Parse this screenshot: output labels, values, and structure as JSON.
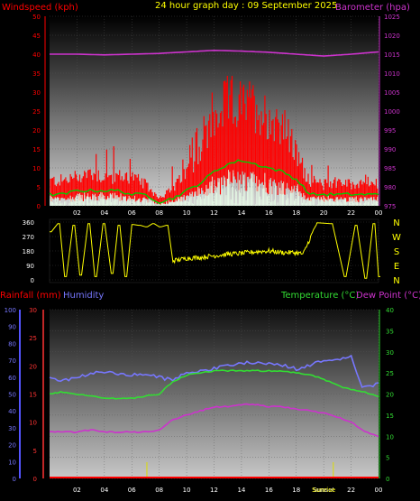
{
  "header": {
    "left_label": "Windspeed (kph)",
    "title": "24 hour graph day : 09 September 2025",
    "right_label": "Barometer (hpa)"
  },
  "colors": {
    "windspeed": "#ff0000",
    "wind_avg": "#00cc00",
    "wind_calm": "#e8ffe8",
    "barometer": "#cc33cc",
    "direction": "#ffff00",
    "rainfall": "#ff0000",
    "humidity": "#7777ff",
    "temperature": "#33dd33",
    "dew_point": "#cc33cc",
    "rain_ticks": "#dddd00",
    "title": "#ffff00"
  },
  "chart_data": [
    {
      "id": "wind_baro",
      "type": "line",
      "x_ticks": [
        "02",
        "04",
        "06",
        "08",
        "10",
        "12",
        "14",
        "16",
        "18",
        "20",
        "22",
        "00"
      ],
      "ylabel": "Windspeed (kph)",
      "ylim": [
        0,
        50
      ],
      "y_ticks": [
        0,
        5,
        10,
        15,
        20,
        25,
        30,
        35,
        40,
        45,
        50
      ],
      "y2label": "Barometer (hpa)",
      "y2lim": [
        975,
        1025
      ],
      "y2_ticks": [
        975,
        980,
        985,
        990,
        995,
        1000,
        1005,
        1010,
        1015,
        1020,
        1025
      ],
      "series": [
        {
          "name": "Windspeed (kph)",
          "x": [
            0,
            1,
            2,
            3,
            4,
            5,
            6,
            7,
            8,
            9,
            10,
            11,
            12,
            13,
            14,
            15,
            16,
            17,
            18,
            19,
            20,
            21,
            22,
            23,
            24
          ],
          "values": [
            6,
            6,
            7,
            8,
            7,
            7,
            7,
            5,
            2,
            4,
            8,
            14,
            20,
            25,
            24,
            24,
            21,
            20,
            12,
            6,
            5,
            6,
            5,
            6,
            5
          ]
        },
        {
          "name": "Average windspeed",
          "x": [
            0,
            1,
            2,
            3,
            4,
            5,
            6,
            7,
            8,
            9,
            10,
            11,
            12,
            13,
            14,
            15,
            16,
            17,
            18,
            19,
            20,
            21,
            22,
            23,
            24
          ],
          "values": [
            3,
            3,
            4,
            4,
            4,
            4,
            3,
            3,
            1,
            2,
            4,
            6,
            9,
            11,
            12,
            11,
            10,
            9,
            7,
            3,
            3,
            3,
            3,
            3,
            3
          ]
        },
        {
          "name": "Barometer (hpa)",
          "x": [
            0,
            2,
            4,
            6,
            8,
            10,
            12,
            14,
            16,
            18,
            20,
            22,
            24
          ],
          "values": [
            1015,
            1015,
            1014.8,
            1015,
            1015.2,
            1015.6,
            1016,
            1015.8,
            1015.5,
            1015,
            1014.5,
            1015,
            1015.6
          ]
        }
      ]
    },
    {
      "id": "direction",
      "type": "line",
      "x_ticks": [
        "02",
        "04",
        "06",
        "08",
        "10",
        "12",
        "14",
        "16",
        "18",
        "20",
        "22",
        "00"
      ],
      "ylim": [
        0,
        360
      ],
      "y_ticks": [
        0,
        90,
        180,
        270,
        360
      ],
      "compass": [
        "N",
        "W",
        "S",
        "E",
        "N"
      ],
      "series": [
        {
          "name": "Wind direction",
          "x": [
            0,
            0.6,
            1.1,
            1.7,
            2.2,
            2.8,
            3.3,
            3.9,
            4.5,
            5.0,
            5.5,
            6.0,
            6.5,
            7.0,
            7.5,
            8.0,
            8.5,
            9.0,
            9.5,
            10.0,
            11,
            12,
            13,
            14,
            15,
            16,
            17,
            18,
            18.5,
            19.5,
            20.5,
            21.5,
            22.3,
            23.0,
            23.6,
            24
          ],
          "values": [
            300,
            350,
            20,
            340,
            30,
            350,
            20,
            350,
            40,
            340,
            20,
            345,
            340,
            330,
            350,
            330,
            340,
            120,
            125,
            135,
            140,
            150,
            160,
            165,
            175,
            180,
            170,
            170,
            160,
            355,
            350,
            20,
            340,
            10,
            350,
            20
          ]
        }
      ]
    },
    {
      "id": "rain_humidity_temp",
      "type": "line",
      "x_ticks": [
        "02",
        "04",
        "06",
        "08",
        "10",
        "12",
        "14",
        "16",
        "18",
        "Sunset",
        "22",
        "00"
      ],
      "sunset_label": "Sunrise",
      "left_outer_label": "Rainfall (mm)",
      "left_outer_lim": [
        0,
        100
      ],
      "left_outer_ticks": [
        0,
        10,
        20,
        30,
        40,
        50,
        60,
        70,
        80,
        90,
        100
      ],
      "left_inner_label": "Humidity",
      "left_inner_lim": [
        0,
        30
      ],
      "left_inner_ticks": [
        0,
        5,
        10,
        15,
        20,
        25,
        30
      ],
      "right_label": "Temperature (°C)",
      "right_label_2": "Dew Point (°C)",
      "right_lim": [
        0,
        40
      ],
      "right_ticks": [
        0,
        5,
        10,
        15,
        20,
        25,
        30,
        35,
        40
      ],
      "series": [
        {
          "name": "Humidity",
          "x": [
            0,
            1,
            2,
            3,
            4,
            5,
            6,
            7,
            8,
            9,
            10,
            11,
            12,
            13,
            14,
            15,
            16,
            17,
            18,
            19,
            20,
            21,
            22,
            22.7,
            23.3,
            24
          ],
          "values": [
            59,
            58,
            60,
            62,
            63,
            62,
            61,
            62,
            60,
            58,
            63,
            64,
            65,
            67,
            68,
            69,
            68,
            67,
            65,
            67,
            70,
            71,
            72,
            55,
            54,
            57
          ]
        },
        {
          "name": "Temperature (°C)",
          "x": [
            0,
            1,
            2,
            3,
            4,
            5,
            6,
            7,
            8,
            9,
            10,
            11,
            12,
            13,
            14,
            15,
            16,
            17,
            18,
            19,
            20,
            21,
            22,
            23,
            24
          ],
          "values": [
            20,
            20.5,
            20,
            19.5,
            19,
            19,
            19,
            19.5,
            20,
            23,
            24.5,
            25,
            25.5,
            25.5,
            25.5,
            25.5,
            25.5,
            25.5,
            25,
            24.5,
            23.5,
            22,
            21,
            20.5,
            19.5
          ]
        },
        {
          "name": "Dew Point (°C)",
          "x": [
            0,
            1,
            2,
            3,
            4,
            5,
            6,
            7,
            8,
            9,
            10,
            11,
            12,
            13,
            14,
            15,
            16,
            17,
            18,
            19,
            20,
            21,
            22,
            23,
            24
          ],
          "values": [
            11,
            11,
            11,
            11.5,
            11,
            11,
            11,
            11,
            11.5,
            14,
            15,
            16,
            17,
            17,
            17.5,
            17.5,
            17,
            17,
            16.5,
            16,
            15.5,
            14.5,
            13.5,
            11,
            10
          ]
        },
        {
          "name": "Rainfall (mm)",
          "x": [
            0,
            24
          ],
          "values": [
            0,
            0
          ]
        }
      ],
      "rain_tick_hours": [
        7.1,
        20.7
      ]
    }
  ]
}
